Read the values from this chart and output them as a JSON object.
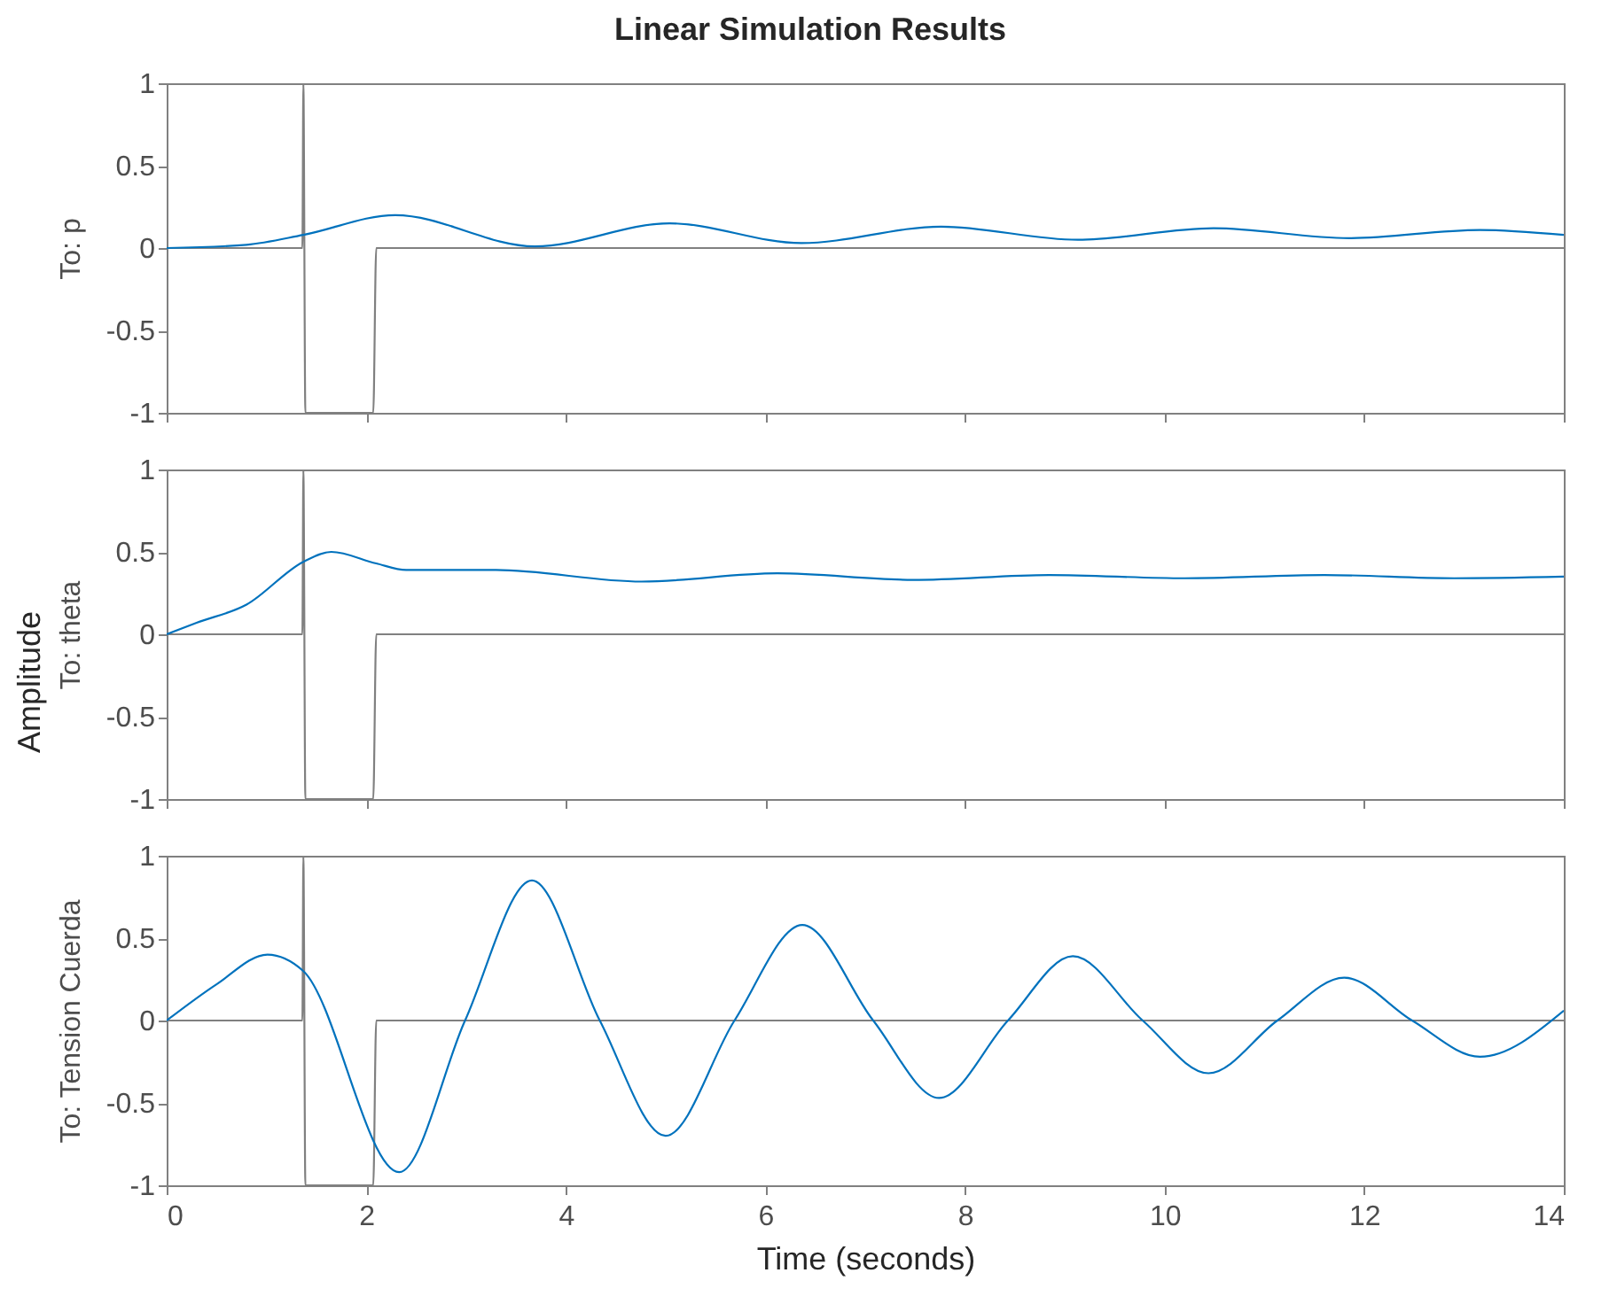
{
  "chart_data": [
    {
      "type": "line",
      "title": "Linear Simulation Results",
      "ylabel": "To: p",
      "xlim": [
        0,
        14
      ],
      "xticks": [
        0,
        2,
        4,
        6,
        8,
        10,
        12,
        14
      ],
      "ylim": [
        -1,
        1
      ],
      "yticks": [
        -1,
        -0.5,
        0,
        0.5,
        1
      ],
      "tick_labels": "y",
      "grid": false,
      "series": [
        {
          "color": "#808080",
          "x": [
            0,
            1.36,
            1.37,
            1.39,
            2.07,
            2.1,
            14
          ],
          "values": [
            0,
            0,
            1,
            -1,
            -1,
            0,
            0
          ]
        },
        {
          "color": "#0072bd",
          "x": [
            0,
            0.8,
            1.37,
            2.29,
            3.69,
            5.04,
            6.36,
            7.76,
            9.13,
            10.49,
            11.85,
            13.16,
            14
          ],
          "values": [
            0,
            0.02,
            0.08,
            0.2,
            0.01,
            0.15,
            0.03,
            0.13,
            0.05,
            0.12,
            0.06,
            0.11,
            0.08
          ]
        }
      ]
    },
    {
      "type": "line",
      "ylabel": "To: theta",
      "annotations": [
        "Amplitude"
      ],
      "xlim": [
        0,
        14
      ],
      "xticks": [
        0,
        2,
        4,
        6,
        8,
        10,
        12,
        14
      ],
      "ylim": [
        -1,
        1
      ],
      "yticks": [
        -1,
        -0.5,
        0,
        0.5,
        1
      ],
      "tick_labels": "y",
      "grid": false,
      "series": [
        {
          "color": "#808080",
          "x": [
            0,
            1.36,
            1.37,
            1.39,
            2.07,
            2.1,
            14
          ],
          "values": [
            0,
            0,
            1,
            -1,
            -1,
            0,
            0
          ]
        },
        {
          "color": "#0072bd",
          "x": [
            0,
            0.3,
            0.8,
            1.37,
            1.65,
            2.1,
            2.4,
            3.3,
            4.76,
            6.12,
            7.48,
            8.84,
            10.2,
            11.6,
            12.9,
            14
          ],
          "values": [
            0,
            0.07,
            0.18,
            0.44,
            0.5,
            0.43,
            0.39,
            0.39,
            0.32,
            0.37,
            0.33,
            0.36,
            0.34,
            0.36,
            0.34,
            0.35
          ]
        }
      ]
    },
    {
      "type": "line",
      "ylabel": "To: Tension Cuerda",
      "xlabel": "Time (seconds)",
      "xlim": [
        0,
        14
      ],
      "xticks": [
        0,
        2,
        4,
        6,
        8,
        10,
        12,
        14
      ],
      "ylim": [
        -1,
        1
      ],
      "yticks": [
        -1,
        -0.5,
        0,
        0.5,
        1
      ],
      "grid": false,
      "series": [
        {
          "color": "#808080",
          "x": [
            0,
            1.36,
            1.37,
            1.39,
            2.07,
            2.1,
            14
          ],
          "values": [
            0,
            0,
            1,
            -1,
            -1,
            0,
            0
          ]
        },
        {
          "color": "#0072bd",
          "x": [
            0,
            0.5,
            1.01,
            1.37,
            2.33,
            2.99,
            3.66,
            4.34,
            5.0,
            5.69,
            6.37,
            7.08,
            7.74,
            8.43,
            9.08,
            9.78,
            10.44,
            11.13,
            11.8,
            12.48,
            13.16,
            14
          ],
          "values": [
            0,
            0.22,
            0.4,
            0.3,
            -0.92,
            0,
            0.85,
            0,
            -0.7,
            0,
            0.58,
            0,
            -0.47,
            0,
            0.39,
            0,
            -0.32,
            0,
            0.26,
            0,
            -0.22,
            0.06
          ]
        }
      ]
    }
  ]
}
